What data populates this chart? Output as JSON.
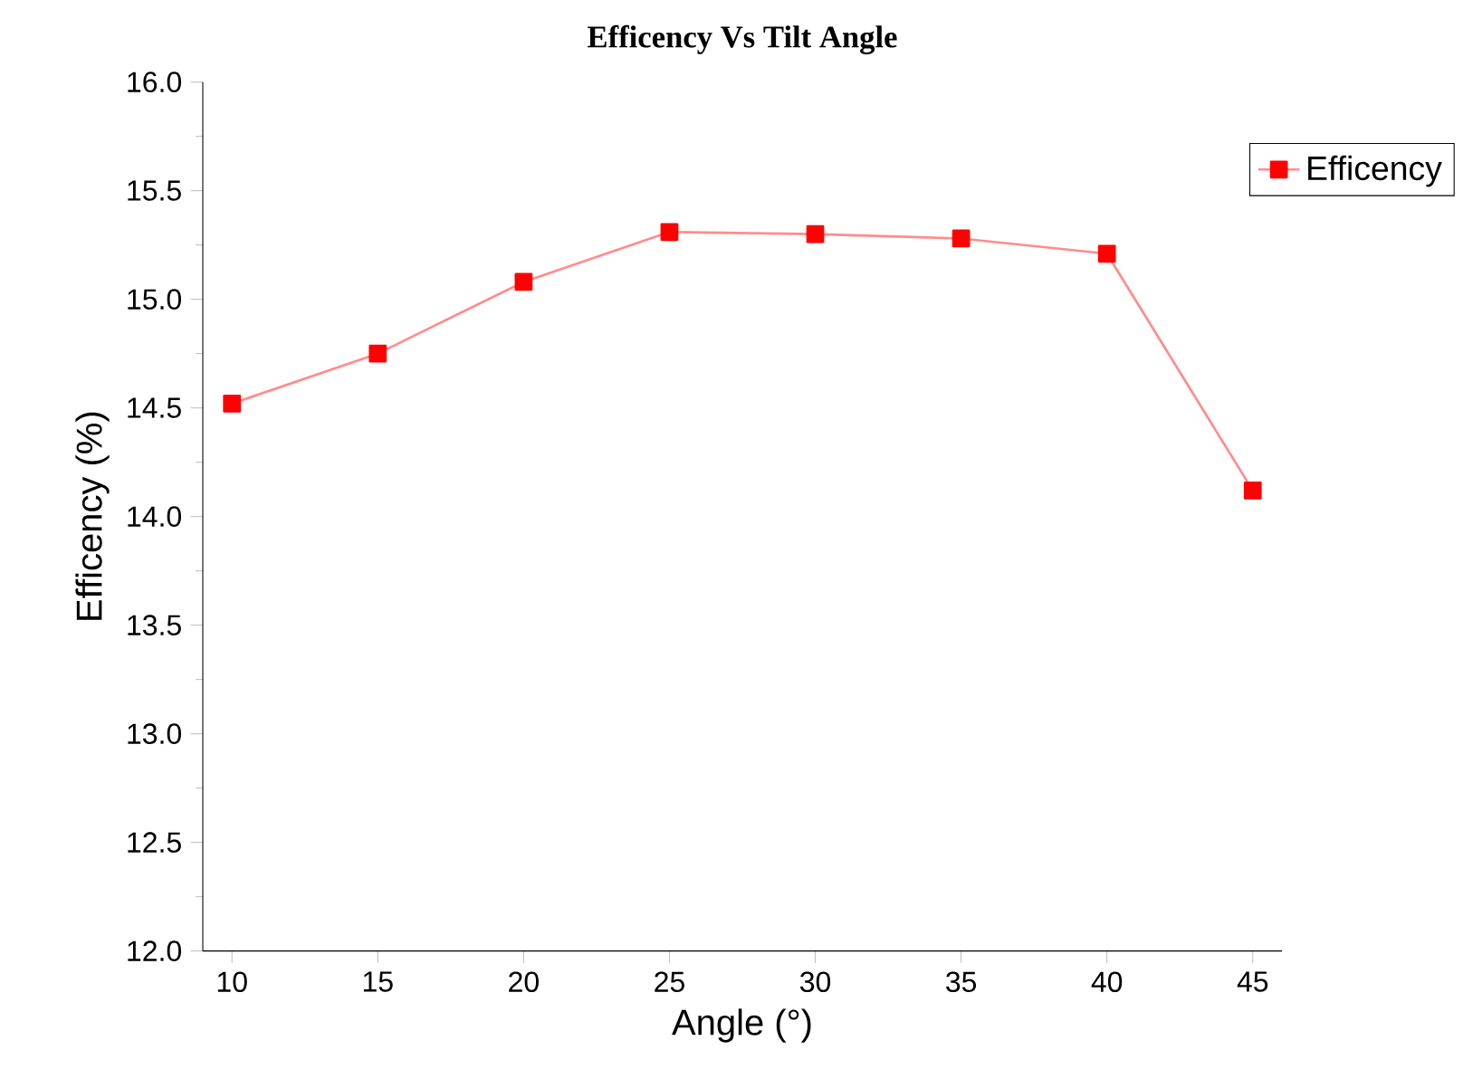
{
  "chart_data": {
    "type": "line",
    "title": "Efficency Vs Tilt Angle",
    "xlabel": "Angle (°)",
    "ylabel": "Efficency (%)",
    "x": [
      10,
      15,
      20,
      25,
      30,
      35,
      40,
      45
    ],
    "series": [
      {
        "name": "Efficency",
        "color": "#ff0000",
        "values": [
          14.52,
          14.75,
          15.08,
          15.31,
          15.3,
          15.28,
          15.21,
          14.12
        ]
      }
    ],
    "xlim": [
      9,
      46
    ],
    "ylim": [
      12,
      16
    ],
    "xticks": [
      10,
      15,
      20,
      25,
      30,
      35,
      40,
      45
    ],
    "yticks": [
      {
        "value": 12,
        "label": "12.0"
      },
      {
        "value": 12.5,
        "label": "12.5"
      },
      {
        "value": 13,
        "label": "13.0"
      },
      {
        "value": 13.5,
        "label": "13.5"
      },
      {
        "value": 14,
        "label": "14.0"
      },
      {
        "value": 14.5,
        "label": "14.5"
      },
      {
        "value": 15,
        "label": "15.0"
      },
      {
        "value": 15.5,
        "label": "15.5"
      },
      {
        "value": 16,
        "label": "16.0"
      }
    ],
    "marker": "square",
    "line_style": "solid",
    "legend": "top right",
    "grid": false
  }
}
